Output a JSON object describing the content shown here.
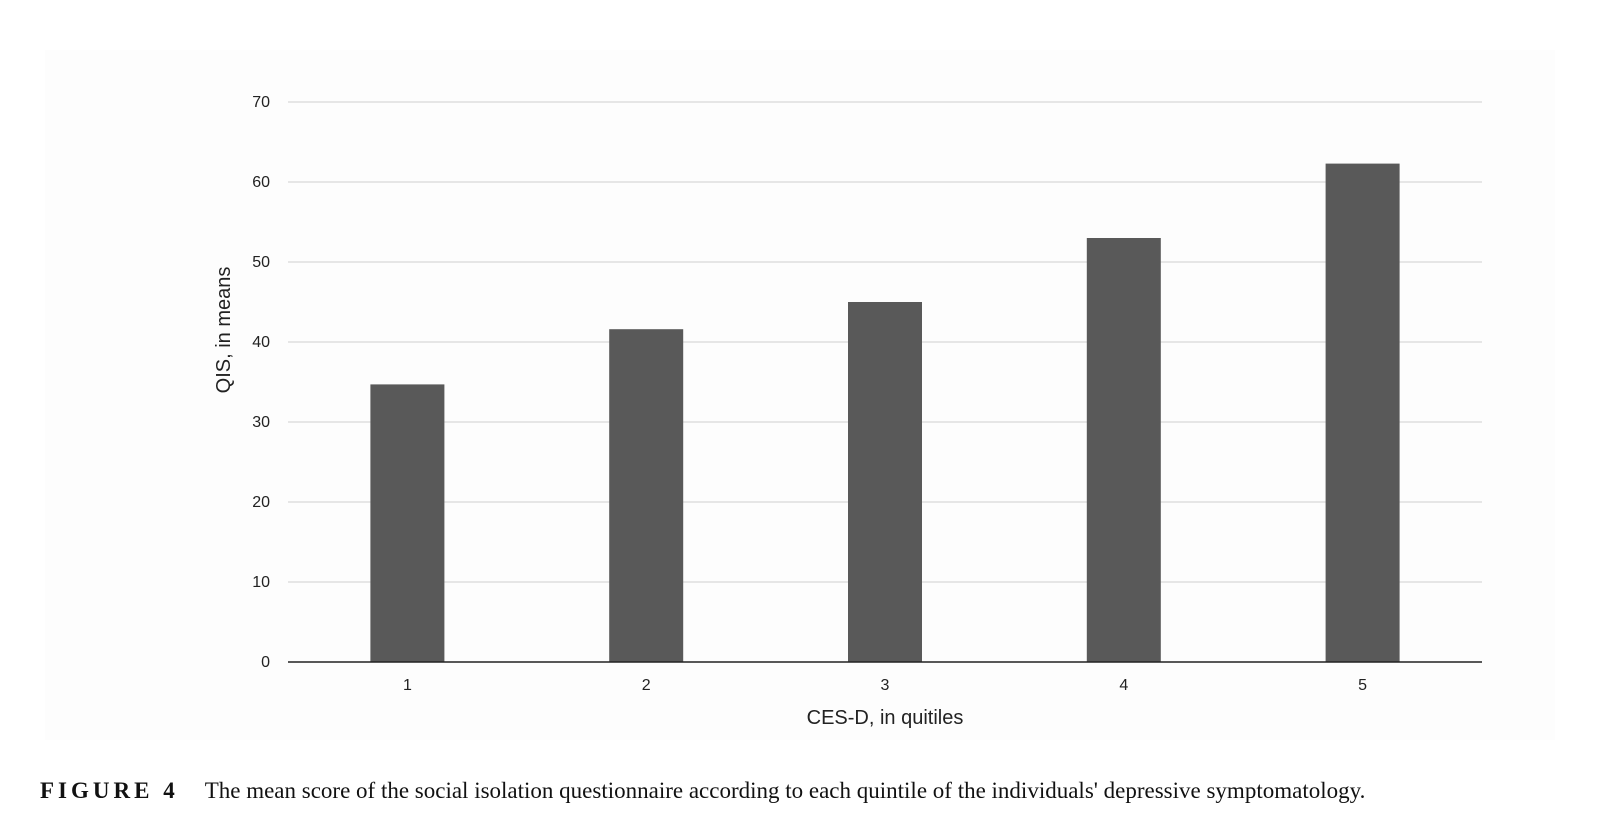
{
  "figure": {
    "label": "FIGURE 4",
    "caption": "The mean score of the social isolation questionnaire according to each quintile of the individuals' depressive symptomatology."
  },
  "chart_data": {
    "type": "bar",
    "categories": [
      "1",
      "2",
      "3",
      "4",
      "5"
    ],
    "values": [
      34.7,
      41.6,
      45.0,
      53.0,
      62.3
    ],
    "xlabel": "CES-D, in quitiles",
    "ylabel": "QIS, in means",
    "ylim": [
      0,
      70
    ],
    "yticks": [
      0,
      10,
      20,
      30,
      40,
      50,
      60,
      70
    ],
    "grid": true,
    "bar_color": "#595959",
    "grid_color": "#d9d9d9",
    "axis_color": "#222222"
  }
}
